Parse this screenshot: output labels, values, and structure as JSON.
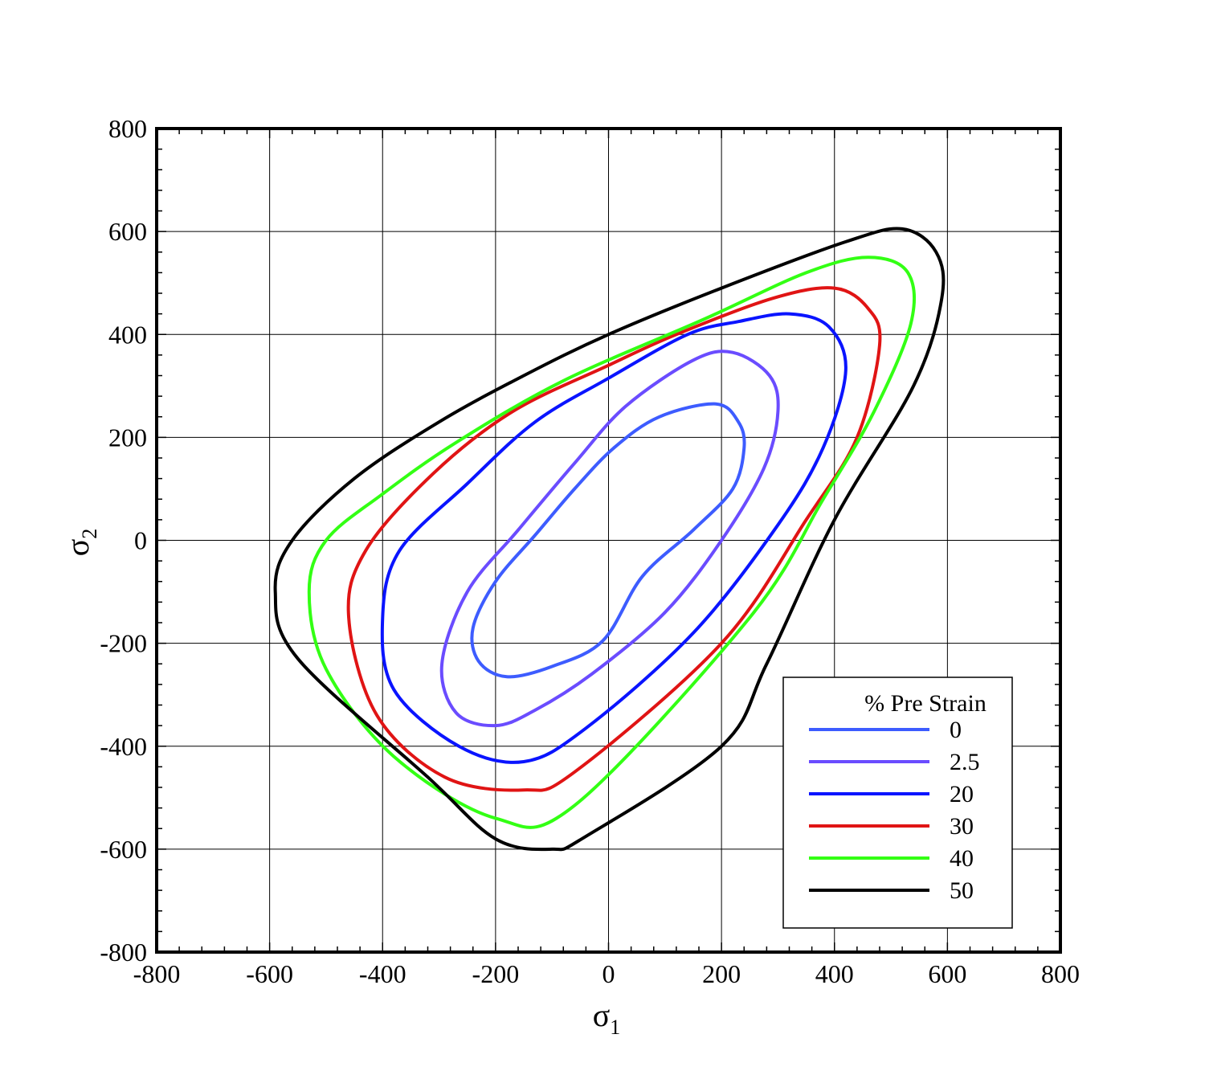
{
  "chart_data": {
    "type": "line",
    "title": "",
    "xlabel": "σ",
    "xlabel_sub": "1",
    "ylabel": "σ",
    "ylabel_sub": "2",
    "xlim": [
      -800,
      800
    ],
    "ylim": [
      -800,
      800
    ],
    "xticks": [
      -800,
      -600,
      -400,
      -200,
      0,
      200,
      400,
      600,
      800
    ],
    "yticks": [
      -800,
      -600,
      -400,
      -200,
      0,
      200,
      400,
      600,
      800
    ],
    "grid": true,
    "legend": {
      "title": "% Pre Strain",
      "position": "bottom-right"
    },
    "series": [
      {
        "name": "0",
        "color": "#3d5cff",
        "points": [
          [
            -10,
            -195
          ],
          [
            -100,
            -245
          ],
          [
            -180,
            -265
          ],
          [
            -230,
            -235
          ],
          [
            -240,
            -170
          ],
          [
            -200,
            -80
          ],
          [
            -130,
            10
          ],
          [
            -60,
            100
          ],
          [
            10,
            180
          ],
          [
            90,
            240
          ],
          [
            190,
            265
          ],
          [
            230,
            230
          ],
          [
            240,
            180
          ],
          [
            220,
            100
          ],
          [
            150,
            20
          ],
          [
            60,
            -70
          ],
          [
            -10,
            -195
          ]
        ]
      },
      {
        "name": "2.5",
        "color": "#6a4cff",
        "points": [
          [
            -30,
            -260
          ],
          [
            -130,
            -330
          ],
          [
            -200,
            -360
          ],
          [
            -270,
            -335
          ],
          [
            -295,
            -240
          ],
          [
            -250,
            -100
          ],
          [
            -160,
            20
          ],
          [
            -60,
            150
          ],
          [
            30,
            260
          ],
          [
            150,
            350
          ],
          [
            220,
            365
          ],
          [
            285,
            320
          ],
          [
            300,
            250
          ],
          [
            275,
            140
          ],
          [
            200,
            0
          ],
          [
            100,
            -140
          ],
          [
            -30,
            -260
          ]
        ]
      },
      {
        "name": "20",
        "color": "#0a14ff",
        "points": [
          [
            -40,
            -365
          ],
          [
            -150,
            -430
          ],
          [
            -265,
            -400
          ],
          [
            -380,
            -290
          ],
          [
            -400,
            -150
          ],
          [
            -370,
            -20
          ],
          [
            -250,
            110
          ],
          [
            -130,
            230
          ],
          [
            0,
            315
          ],
          [
            140,
            400
          ],
          [
            230,
            425
          ],
          [
            320,
            440
          ],
          [
            390,
            415
          ],
          [
            420,
            330
          ],
          [
            380,
            180
          ],
          [
            300,
            30
          ],
          [
            150,
            -180
          ],
          [
            -40,
            -365
          ]
        ]
      },
      {
        "name": "30",
        "color": "#e01414",
        "points": [
          [
            -60,
            -450
          ],
          [
            -150,
            -485
          ],
          [
            -290,
            -460
          ],
          [
            -410,
            -340
          ],
          [
            -460,
            -150
          ],
          [
            -430,
            -20
          ],
          [
            -310,
            130
          ],
          [
            -170,
            250
          ],
          [
            0,
            340
          ],
          [
            120,
            400
          ],
          [
            290,
            470
          ],
          [
            400,
            490
          ],
          [
            460,
            450
          ],
          [
            480,
            380
          ],
          [
            440,
            200
          ],
          [
            350,
            40
          ],
          [
            200,
            -200
          ],
          [
            -60,
            -450
          ]
        ]
      },
      {
        "name": "40",
        "color": "#33ff14",
        "points": [
          [
            -60,
            -515
          ],
          [
            -200,
            -540
          ],
          [
            -380,
            -420
          ],
          [
            -500,
            -250
          ],
          [
            -530,
            -100
          ],
          [
            -500,
            0
          ],
          [
            -400,
            90
          ],
          [
            -270,
            190
          ],
          [
            -80,
            310
          ],
          [
            170,
            430
          ],
          [
            350,
            520
          ],
          [
            460,
            550
          ],
          [
            530,
            520
          ],
          [
            535,
            420
          ],
          [
            470,
            250
          ],
          [
            380,
            80
          ],
          [
            250,
            -150
          ],
          [
            -60,
            -515
          ]
        ]
      },
      {
        "name": "50",
        "color": "#000000",
        "points": [
          [
            -40,
            -575
          ],
          [
            -100,
            -600
          ],
          [
            -200,
            -580
          ],
          [
            -320,
            -460
          ],
          [
            -550,
            -230
          ],
          [
            -590,
            -100
          ],
          [
            -560,
            0
          ],
          [
            -450,
            120
          ],
          [
            -300,
            230
          ],
          [
            -150,
            320
          ],
          [
            0,
            400
          ],
          [
            200,
            490
          ],
          [
            420,
            580
          ],
          [
            520,
            605
          ],
          [
            580,
            560
          ],
          [
            590,
            470
          ],
          [
            540,
            300
          ],
          [
            400,
            40
          ],
          [
            280,
            -240
          ],
          [
            200,
            -400
          ],
          [
            -40,
            -575
          ]
        ]
      }
    ]
  }
}
